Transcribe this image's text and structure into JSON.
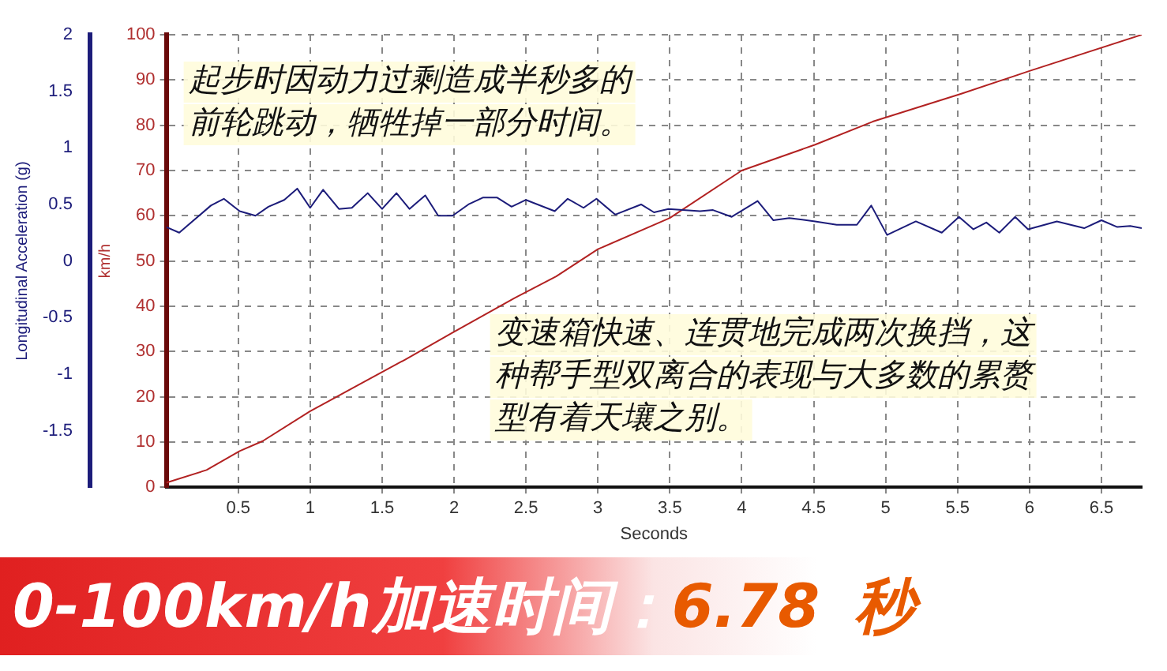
{
  "chart_data": {
    "type": "line",
    "xlabel": "Seconds",
    "ylabel": "Longitudinal Acceleration (g)",
    "y2label": "km/h",
    "xlim": [
      0,
      6.78
    ],
    "xticks": [
      0.5,
      1,
      1.5,
      2,
      2.5,
      3,
      3.5,
      4,
      4.5,
      5,
      5.5,
      6,
      6.5
    ],
    "ylim": [
      -2,
      2
    ],
    "yticks": [
      -1.5,
      -1,
      -0.5,
      0,
      0.5,
      1,
      1.5,
      2
    ],
    "y2lim": [
      0,
      100
    ],
    "y2ticks": [
      0,
      10,
      20,
      30,
      40,
      50,
      60,
      70,
      80,
      90,
      100
    ],
    "grid": true,
    "series": [
      {
        "color": "#1c1c7a",
        "x": [
          0,
          0.09,
          0.31,
          0.4,
          0.51,
          0.62,
          0.71,
          0.82,
          0.91,
          1.0,
          1.09,
          1.2,
          1.29,
          1.4,
          1.5,
          1.6,
          1.69,
          1.8,
          1.89,
          1.99,
          2.1,
          2.2,
          2.3,
          2.4,
          2.5,
          2.7,
          2.79,
          2.9,
          2.99,
          3.12,
          3.3,
          3.39,
          3.49,
          3.71,
          3.8,
          3.93,
          4.11,
          4.22,
          4.33,
          4.51,
          4.66,
          4.8,
          4.9,
          5.01,
          5.21,
          5.39,
          5.51,
          5.61,
          5.7,
          5.79,
          5.9,
          5.99,
          6.19,
          6.38,
          6.5,
          6.61,
          6.7,
          6.78
        ],
        "values": [
          0.3,
          0.25,
          0.49,
          0.55,
          0.44,
          0.4,
          0.48,
          0.54,
          0.64,
          0.47,
          0.63,
          0.46,
          0.47,
          0.6,
          0.46,
          0.6,
          0.46,
          0.58,
          0.4,
          0.4,
          0.5,
          0.56,
          0.56,
          0.48,
          0.54,
          0.44,
          0.55,
          0.47,
          0.55,
          0.41,
          0.5,
          0.43,
          0.46,
          0.44,
          0.45,
          0.39,
          0.53,
          0.36,
          0.38,
          0.35,
          0.32,
          0.32,
          0.49,
          0.23,
          0.35,
          0.25,
          0.39,
          0.28,
          0.34,
          0.25,
          0.39,
          0.28,
          0.35,
          0.29,
          0.36,
          0.3,
          0.31,
          0.29
        ]
      },
      {
        "color": "#b22222",
        "axis": "y2",
        "x": [
          0,
          0.28,
          0.51,
          0.67,
          1.0,
          1.33,
          1.66,
          1.98,
          2.42,
          2.71,
          3.0,
          3.5,
          4.0,
          4.51,
          4.91,
          5.53,
          6.0,
          6.78
        ],
        "values": [
          1,
          3.8,
          8,
          10.2,
          16.8,
          22.5,
          28.2,
          34,
          41.8,
          46.6,
          52.6,
          59.5,
          70,
          75.7,
          80.8,
          87,
          92,
          100
        ]
      }
    ],
    "annotations": [
      "起步时因动力过剩造成半秒多的前轮跳动，牺牲掉一部分时间。",
      "变速箱快速、连贯地完成两次换挡，这种帮手型双离合的表现与大多数的累赘型有着天壤之别。",
      "0-100km/h加速时间：",
      "6.78",
      "秒"
    ]
  }
}
